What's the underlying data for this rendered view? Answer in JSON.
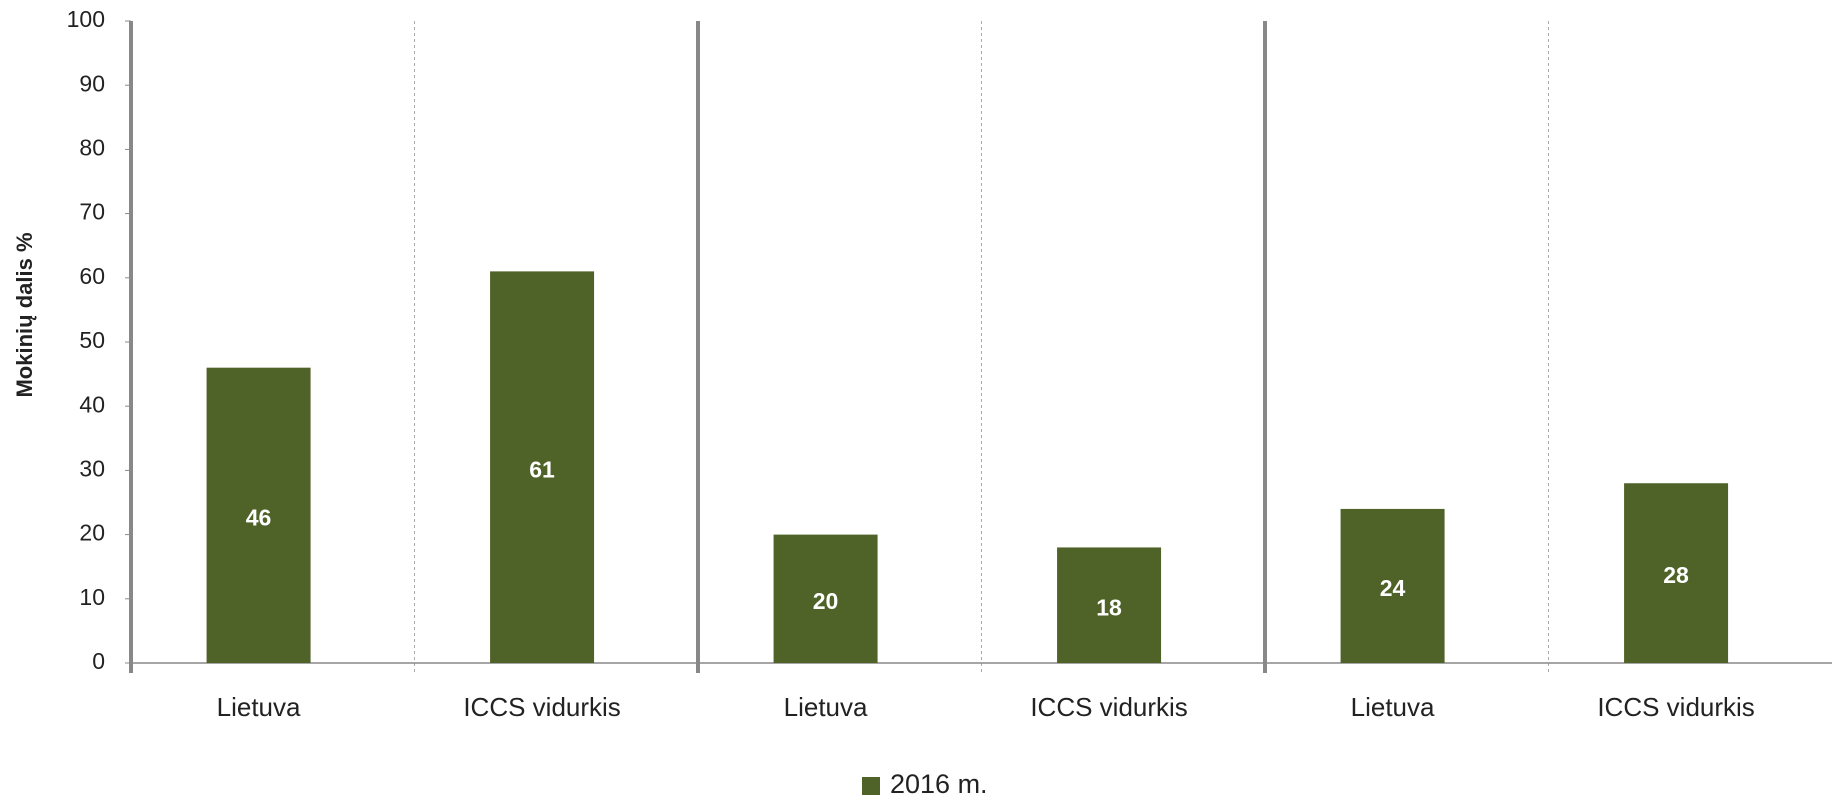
{
  "chart_data": {
    "type": "bar",
    "y_axis_label": "Mokinių dalis %",
    "categories": [
      "Lietuva",
      "ICCS vidurkis",
      "Lietuva",
      "ICCS vidurkis",
      "Lietuva",
      "ICCS vidurkis"
    ],
    "series": [
      {
        "name": "2016 m.",
        "color": "#4f6228",
        "values": [
          46,
          61,
          20,
          18,
          24,
          28
        ]
      }
    ],
    "ylim": [
      0,
      100
    ],
    "yticks": [
      0,
      10,
      20,
      30,
      40,
      50,
      60,
      70,
      80,
      90,
      100
    ],
    "legend": "bottom"
  }
}
